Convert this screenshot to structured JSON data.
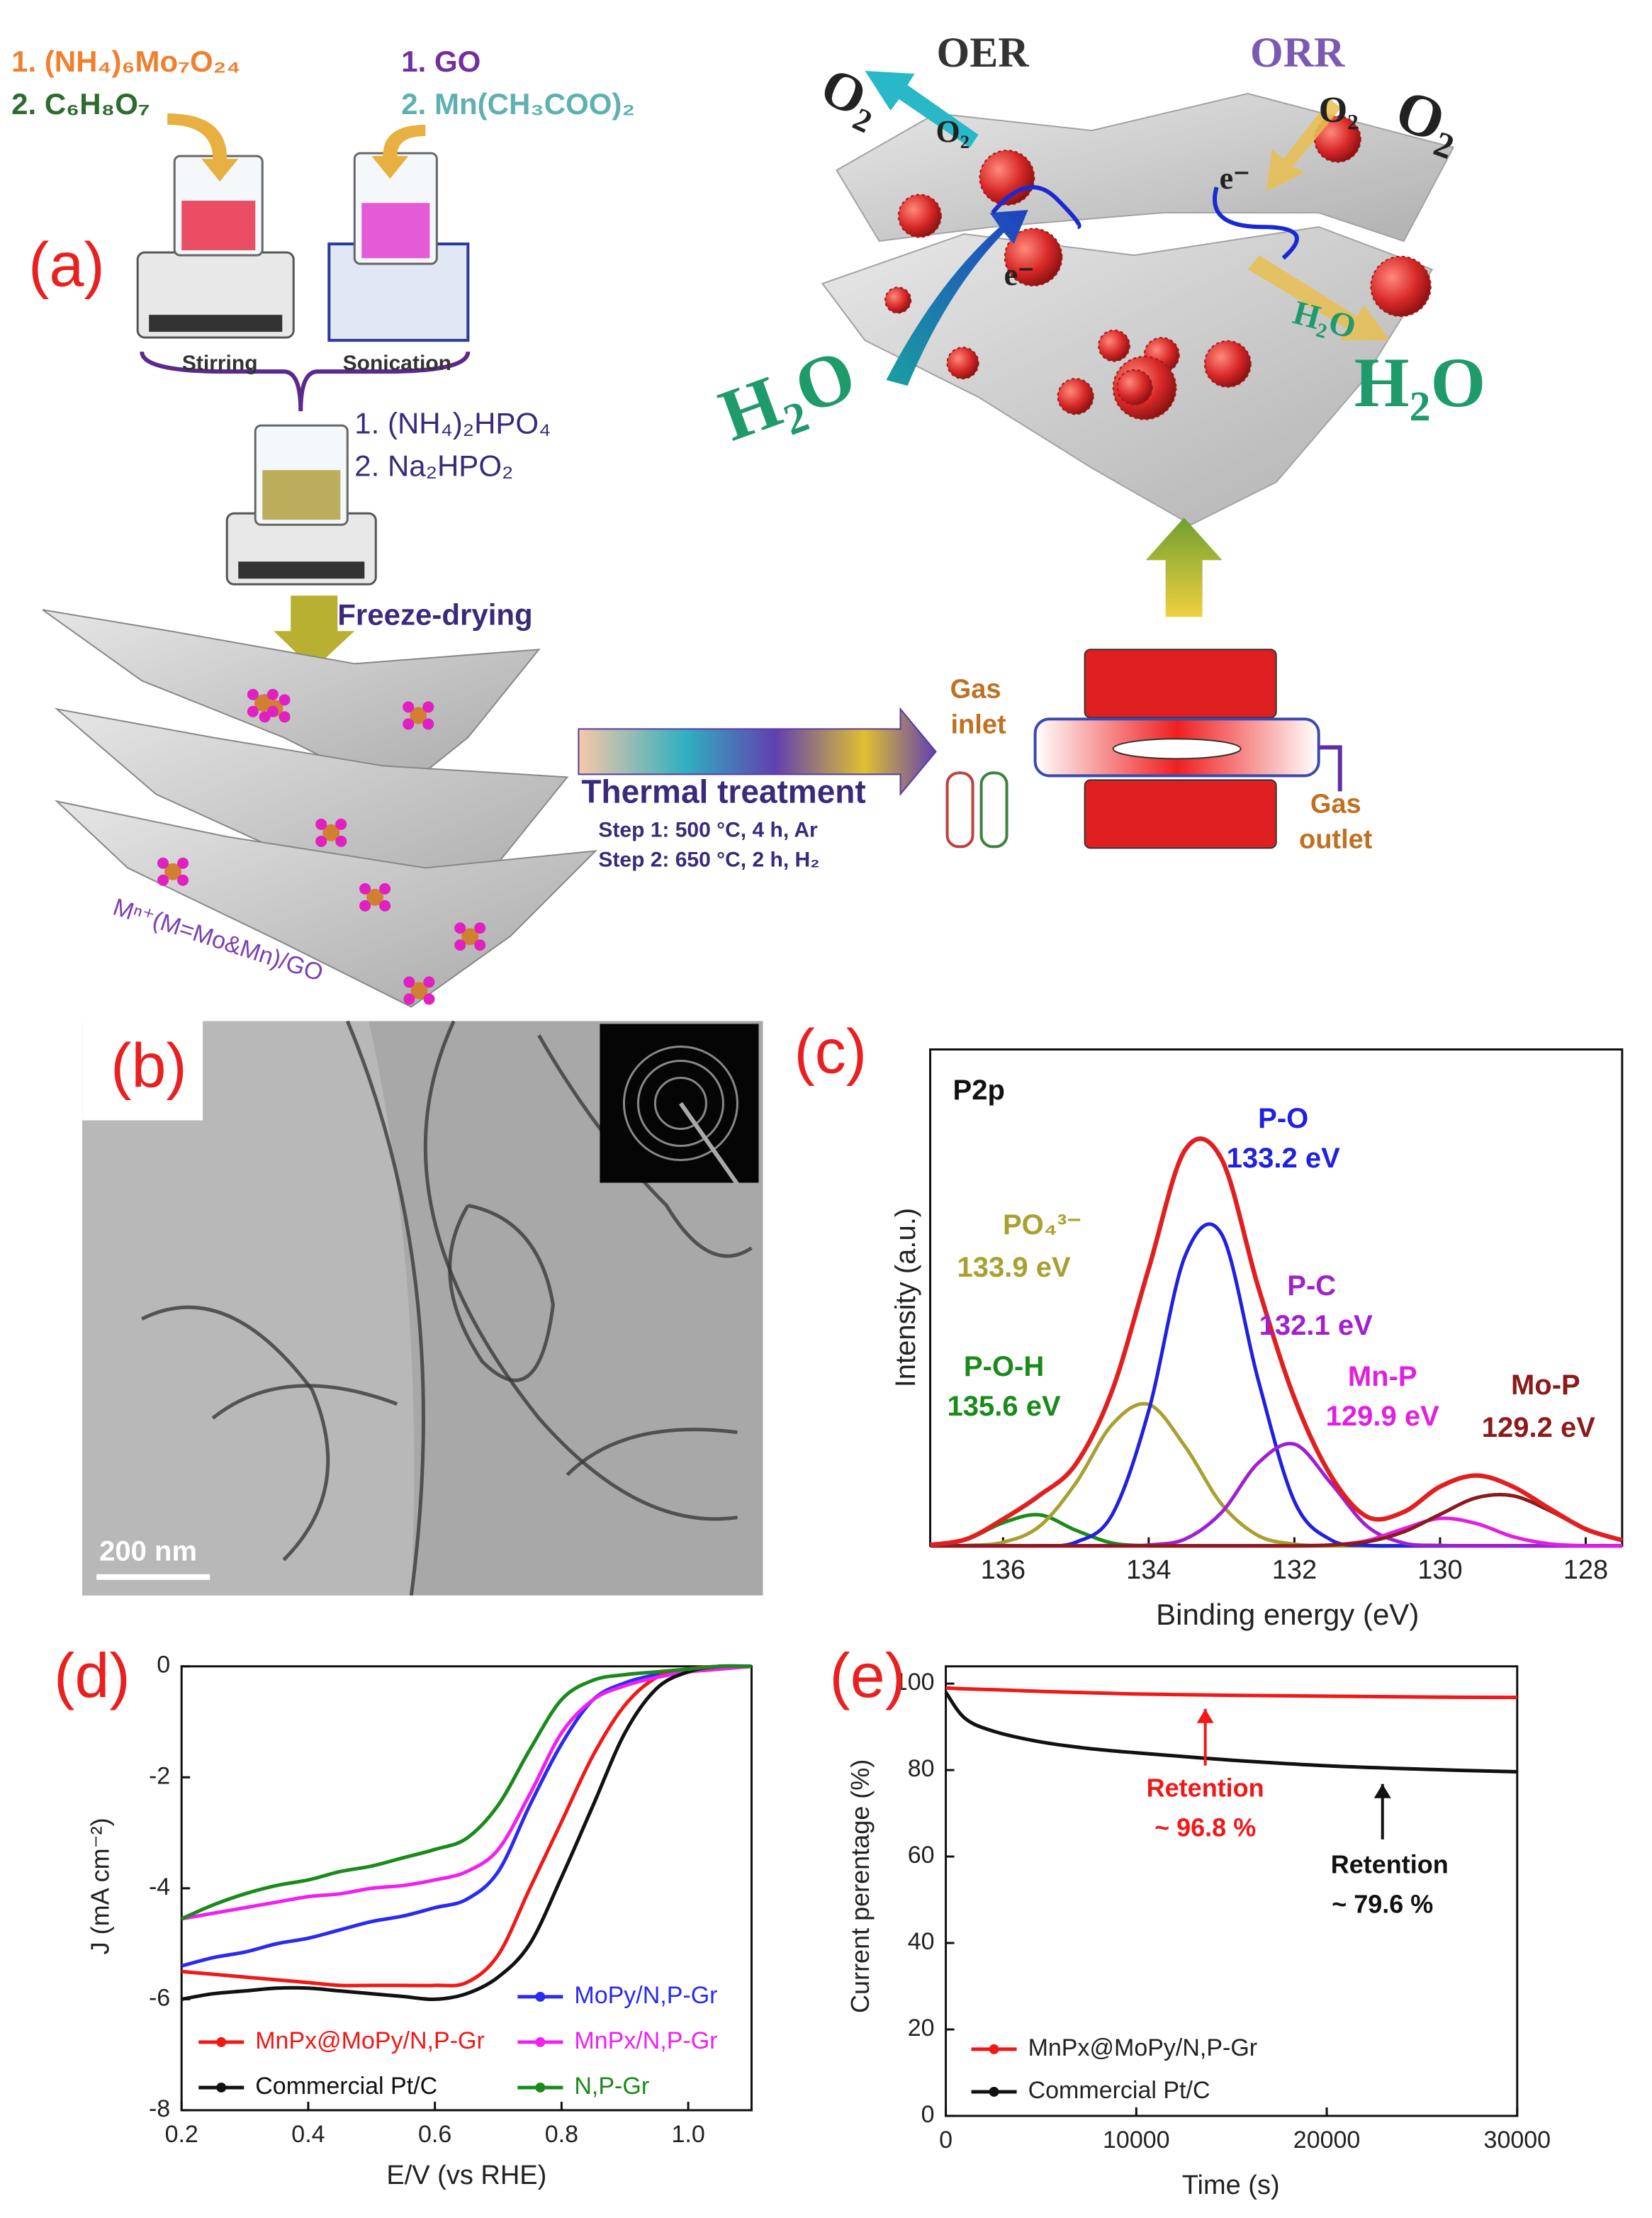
{
  "panels": {
    "a": {
      "label": "(a)",
      "reagents_left": [
        "1. (NH₄)₆Mo₇O₂₄",
        "2. C₆H₈O₇"
      ],
      "reagents_right": [
        "1.  GO",
        "2.  Mn(CH₃COO)₂"
      ],
      "stirring": "Stirring",
      "sonication": "Sonication",
      "reagents_mix": [
        "1.  (NH₄)₂HPO₄",
        "2.  Na₂HPO₂"
      ],
      "freeze_drying": "Freeze-drying",
      "precursor": "Mⁿ⁺(M=Mo&Mn)/GO",
      "thermal": {
        "title": "Thermal treatment",
        "steps": [
          "Step 1: 500 °C, 4 h, Ar",
          "Step 2: 650 °C, 2 h, H₂"
        ]
      },
      "gas_inlet": [
        "Gas",
        "inlet"
      ],
      "gas_outlet": [
        "Gas",
        "outlet"
      ],
      "oer": "OER",
      "orr": "ORR",
      "o2": [
        "O₂",
        "O₂",
        "O₂",
        "O₂"
      ],
      "h2o": [
        "H₂O",
        "H₂O",
        "H₂O"
      ],
      "electron": [
        "e⁻",
        "e⁻"
      ]
    },
    "b": {
      "label": "(b)",
      "scale_bar": "200 nm"
    }
  },
  "chart_data": [
    {
      "type": "line",
      "label": "(c)",
      "x_label": "Binding energy (eV)",
      "y_label": "Intensity (a.u.)",
      "xlim": [
        137,
        127.5
      ],
      "ylim": [
        0,
        125
      ],
      "xticks": [
        136,
        134,
        132,
        130,
        128
      ],
      "x": [
        137,
        136.5,
        136,
        135.5,
        135,
        134.5,
        134,
        133.5,
        133,
        132.5,
        132,
        131.5,
        131,
        130.5,
        130,
        129.5,
        129,
        128.5,
        128,
        127.5
      ],
      "series": [
        {
          "name": "P-O-H",
          "color": "#1a8a1a",
          "values": [
            0.2,
            1.6,
            5.8,
            7.8,
            3.9,
            0.7,
            0,
            0,
            0,
            0,
            0,
            0,
            0,
            0,
            0,
            0,
            0,
            0,
            0,
            0
          ]
        },
        {
          "name": "PO₄³⁻",
          "color": "#a8a030",
          "values": [
            0,
            0.1,
            0.9,
            4.9,
            15.8,
            30.6,
            35.6,
            25,
            10.5,
            2.6,
            0.4,
            0,
            0,
            0,
            0,
            0,
            0,
            0,
            0,
            0
          ]
        },
        {
          "name": "P-O",
          "color": "#2020e0",
          "values": [
            0,
            0,
            0,
            0,
            0.9,
            7.9,
            34,
            73,
            78.5,
            42,
            11.2,
            1.5,
            0.1,
            0,
            0,
            0,
            0,
            0,
            0,
            0
          ]
        },
        {
          "name": "P-C",
          "color": "#a020d0",
          "values": [
            0,
            0,
            0,
            0,
            0,
            0,
            0.2,
            1.7,
            8.4,
            20.8,
            25.6,
            15.8,
            4.9,
            0.7,
            0.1,
            0,
            0,
            0,
            0,
            0
          ]
        },
        {
          "name": "Mn-P",
          "color": "#e020e0",
          "values": [
            0,
            0,
            0,
            0,
            0,
            0,
            0,
            0,
            0,
            0,
            0,
            0.2,
            1.3,
            4.3,
            6.9,
            5.6,
            2.3,
            0.5,
            0,
            0
          ]
        },
        {
          "name": "Mo-P",
          "color": "#8b1a1a",
          "values": [
            0,
            0,
            0,
            0,
            0,
            0,
            0,
            0,
            0,
            0,
            0,
            0.2,
            1,
            3.5,
            7.9,
            12.1,
            12.6,
            8.9,
            4.2,
            1.4
          ]
        },
        {
          "color": "#e02020",
          "values": [
            0.2,
            1.7,
            6.7,
            12.7,
            20.6,
            39.2,
            69.8,
            99.7,
            97.4,
            65.4,
            37.2,
            17.7,
            7.3,
            8.5,
            14.9,
            17.7,
            14.9,
            9.4,
            4.2,
            1.4
          ]
        }
      ],
      "annotations": [
        {
          "text": "P2p",
          "color": "#111111"
        },
        {
          "text": "135.6 eV",
          "color": "#1a8a1a"
        },
        {
          "text": "133.9 eV",
          "color": "#a8a030"
        },
        {
          "text": "133.2 eV",
          "color": "#2020e0"
        },
        {
          "text": "132.1 eV",
          "color": "#a020d0"
        },
        {
          "text": "129.9 eV",
          "color": "#e020e0"
        },
        {
          "text": "129.2 eV",
          "color": "#8b1a1a"
        }
      ]
    },
    {
      "type": "line",
      "label": "(d)",
      "x_label": "E/V (vs RHE)",
      "y_label": "J (mA cm⁻²)",
      "xlim": [
        0.2,
        1.1
      ],
      "ylim": [
        -8,
        0
      ],
      "xticks": [
        0.2,
        0.4,
        0.6,
        0.8,
        {
          "value": 1,
          "label": "1.0"
        }
      ],
      "yticks": [
        -8,
        -6,
        -4,
        -2,
        0
      ],
      "x": [
        0.2,
        0.25,
        0.3,
        0.35,
        0.4,
        0.45,
        0.5,
        0.55,
        0.6,
        0.65,
        0.7,
        0.75,
        0.8,
        0.85,
        0.9,
        0.95,
        1.0,
        1.05,
        1.1
      ],
      "series": [
        {
          "name": "MoPy/N,P-Gr",
          "color": "#2a2af0",
          "values": [
            -5.4,
            -5.25,
            -5.15,
            -5.0,
            -4.9,
            -4.75,
            -4.6,
            -4.5,
            -4.35,
            -4.2,
            -3.7,
            -2.5,
            -1.4,
            -0.6,
            -0.3,
            -0.15,
            -0.05,
            0,
            0
          ]
        },
        {
          "name": "MnPx@MoPy/N,P-Gr",
          "color": "#f01818",
          "values": [
            -5.5,
            -5.55,
            -5.6,
            -5.65,
            -5.7,
            -5.75,
            -5.75,
            -5.75,
            -5.75,
            -5.7,
            -5.2,
            -4.0,
            -2.8,
            -1.6,
            -0.7,
            -0.2,
            -0.05,
            0,
            0
          ]
        },
        {
          "name": "MnPx/N,P-Gr",
          "color": "#f020f0",
          "values": [
            -4.55,
            -4.45,
            -4.35,
            -4.25,
            -4.15,
            -4.1,
            -4.0,
            -3.95,
            -3.85,
            -3.7,
            -3.3,
            -2.3,
            -1.2,
            -0.6,
            -0.35,
            -0.2,
            -0.1,
            -0.05,
            0
          ]
        },
        {
          "name": "Commercial Pt/C",
          "color": "#111111",
          "values": [
            -6.0,
            -5.9,
            -5.85,
            -5.8,
            -5.8,
            -5.85,
            -5.9,
            -5.95,
            -6.0,
            -5.9,
            -5.6,
            -5.0,
            -3.8,
            -2.5,
            -1.2,
            -0.4,
            -0.1,
            0,
            0
          ]
        },
        {
          "name": "N,P-Gr",
          "color": "#1a8a1a",
          "values": [
            -4.55,
            -4.3,
            -4.1,
            -3.95,
            -3.85,
            -3.7,
            -3.6,
            -3.45,
            -3.3,
            -3.1,
            -2.5,
            -1.5,
            -0.6,
            -0.25,
            -0.15,
            -0.1,
            -0.05,
            0,
            0
          ]
        }
      ]
    },
    {
      "type": "line",
      "label": "(e)",
      "x_label": "Time (s)",
      "y_label": "Current perentage (%)",
      "xlim": [
        0,
        30000
      ],
      "ylim": [
        0,
        104
      ],
      "xticks": [
        0,
        10000,
        20000,
        30000
      ],
      "yticks": [
        0,
        20,
        40,
        60,
        80,
        100
      ],
      "x": [
        0,
        1000,
        2500,
        5000,
        7500,
        10000,
        15000,
        20000,
        25000,
        30000
      ],
      "series": [
        {
          "name": "MnPx@MoPy/N,P-Gr",
          "color": "#f01818",
          "values": [
            99,
            98.8,
            98.6,
            98.2,
            97.9,
            97.6,
            97.3,
            97.1,
            96.9,
            96.8
          ]
        },
        {
          "name": "Commercial Pt/C",
          "color": "#111111",
          "values": [
            98,
            92,
            89,
            86.5,
            85,
            84,
            82.3,
            81,
            80.2,
            79.6
          ]
        }
      ],
      "annotations": [
        {
          "text": "Retention",
          "color": "#f01818"
        },
        {
          "text": "~ 96.8 %",
          "color": "#f01818"
        },
        {
          "text": "Retention",
          "color": "#111111"
        },
        {
          "text": "~ 79.6 %",
          "color": "#111111"
        }
      ]
    }
  ]
}
